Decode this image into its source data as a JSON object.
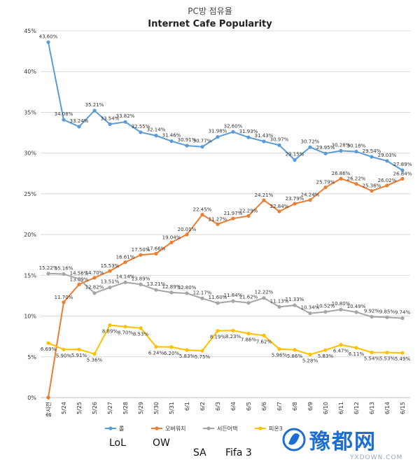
{
  "chart_data": {
    "type": "line",
    "title": "PC방 점유율",
    "subtitle": "Internet Cafe Popularity",
    "ylim": [
      0,
      45
    ],
    "yticks": [
      0,
      5,
      10,
      15,
      20,
      25,
      30,
      35,
      40,
      45
    ],
    "ytick_labels": [
      "0%",
      "5%",
      "10%",
      "15%",
      "20%",
      "25%",
      "30%",
      "35%",
      "40%",
      "45%"
    ],
    "grid": true,
    "categories": [
      "출시전",
      "5/24",
      "5/25",
      "5/26",
      "5/27",
      "5/28",
      "5/29",
      "5/30",
      "5/31",
      "6/1",
      "6/2",
      "6/3",
      "6/4",
      "6/5",
      "6/6",
      "6/7",
      "6/8",
      "6/9",
      "6/10",
      "6/11",
      "6/12",
      "6/13",
      "6/14",
      "6/15"
    ],
    "series": [
      {
        "name": "롤",
        "color": "#5b9bd5",
        "values": [
          43.6,
          34.08,
          33.24,
          35.21,
          33.54,
          33.82,
          32.55,
          32.14,
          31.46,
          30.91,
          30.77,
          31.98,
          32.6,
          31.93,
          31.43,
          30.97,
          29.15,
          30.72,
          29.95,
          30.28,
          30.18,
          29.54,
          29.03,
          27.89
        ],
        "labels": [
          "43.60%",
          "34.08%",
          "33.24%",
          "35.21%",
          "33.54%",
          "33.82%",
          "32.55%",
          "32.14%",
          "31.46%",
          "30.91%",
          "30.77%",
          "31.98%",
          "32.60%",
          "31.93%",
          "31.43%",
          "30.97%",
          "29.15%",
          "30.72%",
          "29.95%",
          "30.28%",
          "30.18%",
          "29.54%",
          "29.03%",
          "27.89%"
        ]
      },
      {
        "name": "오버워치",
        "color": "#ed7d31",
        "values": [
          0,
          11.7,
          13.89,
          14.7,
          15.53,
          16.61,
          17.5,
          17.66,
          19.04,
          20.01,
          22.45,
          21.27,
          21.97,
          22.29,
          24.21,
          22.84,
          23.79,
          24.24,
          25.79,
          26.86,
          26.22,
          25.36,
          26.02,
          26.84
        ],
        "labels": [
          "",
          "11.70%",
          "13.89%",
          "14.70%",
          "15.53%",
          "16.61%",
          "17.50%",
          "17.66%",
          "19.04%",
          "20.01%",
          "22.45%",
          "21.27%",
          "21.97%",
          "22.29%",
          "24.21%",
          "22.84%",
          "23.79%",
          "24.24%",
          "25.79%",
          "26.86%",
          "26.22%",
          "25.36%",
          "26.02%",
          "26.84%"
        ]
      },
      {
        "name": "서든어택",
        "color": "#a5a5a5",
        "values": [
          15.22,
          15.16,
          14.56,
          12.82,
          13.51,
          14.14,
          13.89,
          13.21,
          12.89,
          12.8,
          12.17,
          11.6,
          11.84,
          11.62,
          12.22,
          11.13,
          11.33,
          10.34,
          10.52,
          10.8,
          10.49,
          9.92,
          9.85,
          9.74
        ],
        "labels": [
          "15.22%",
          "15.16%",
          "14.56%",
          "12.82%",
          "13.51%",
          "14.14%",
          "13.89%",
          "13.21%",
          "12.89%",
          "12.80%",
          "12.17%",
          "11.60%",
          "11.84%",
          "11.62%",
          "12.22%",
          "11.13%",
          "11.33%",
          "10.34%",
          "10.52%",
          "10.80%",
          "10.49%",
          "9.92%",
          "9.85%",
          "9.74%"
        ]
      },
      {
        "name": "피온3",
        "color": "#ffc000",
        "values": [
          6.69,
          5.9,
          5.91,
          5.36,
          8.89,
          8.7,
          8.53,
          6.24,
          6.2,
          5.83,
          5.75,
          8.19,
          8.23,
          7.86,
          7.62,
          5.96,
          5.86,
          5.28,
          5.83,
          6.47,
          6.11,
          5.54,
          5.53,
          5.49
        ],
        "labels": [
          "6.69%",
          "5.90%",
          "5.91%",
          "5.36%",
          "8.89%",
          "8.70%",
          "8.53%",
          "6.24%",
          "6.20%",
          "5.83%",
          "5.75%",
          "8.19%",
          "8.23%",
          "7.86%",
          "7.62%",
          "5.96%",
          "5.86%",
          "5.28%",
          "5.83%",
          "6.47%",
          "6.11%",
          "5.54%",
          "5.53%",
          "5.49%"
        ]
      }
    ],
    "legend_position": "bottom",
    "annotations": [
      "LoL",
      "OW",
      "SA",
      "Fifa 3"
    ]
  },
  "watermark": {
    "text": "豫都网",
    "sub": "YXDOWN.COM",
    "color": "#1c6fd1"
  }
}
